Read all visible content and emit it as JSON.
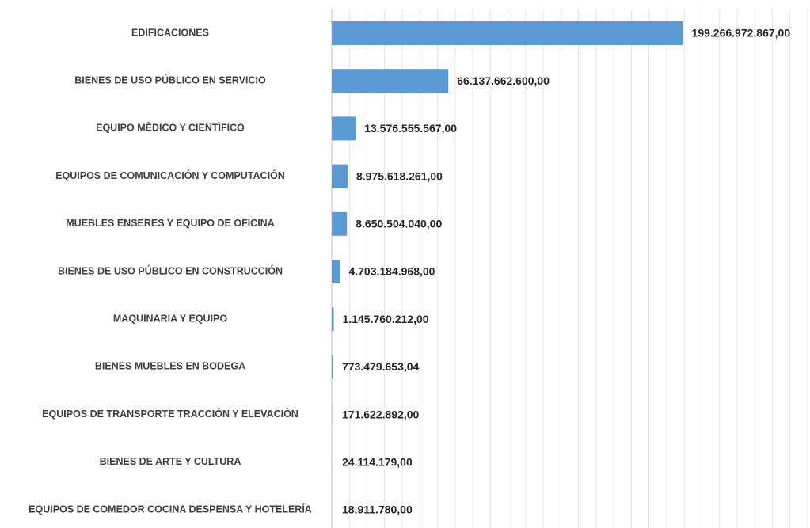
{
  "chart_data": {
    "type": "barh",
    "categories": [
      "EDIFICACIONES",
      "BIENES DE USO PÚBLICO EN SERVICIO",
      "EQUIPO MÈDICO Y CIENTÌFICO",
      "EQUIPOS DE COMUNICACIÓN Y COMPUTACIÓN",
      "MUEBLES  ENSERES Y EQUIPO DE OFICINA",
      "BIENES DE USO PÚBLICO  EN CONSTRUCCIÓN",
      "MAQUINARIA Y EQUIPO",
      "BIENES MUEBLES EN BODEGA",
      "EQUIPOS DE TRANSPORTE  TRACCIÓN Y ELEVACIÓN",
      "BIENES DE ARTE Y CULTURA",
      "EQUIPOS DE COMEDOR  COCINA  DESPENSA Y HOTELERÍA"
    ],
    "values": [
      199266972867,
      66137662600,
      13576555567,
      8975618261,
      8650504040,
      4703184968,
      1145760212,
      773479653.04,
      171622892,
      24114179,
      18911780
    ],
    "value_labels": [
      "199.266.972.867,00",
      "66.137.662.600,00",
      "13.576.555.567,00",
      "8.975.618.261,00",
      "8.650.504.040,00",
      "4.703.184.968,00",
      "1.145.760.212,00",
      "773.479.653,04",
      "171.622.892,00",
      "24.114.179,00",
      "18.911.780,00"
    ],
    "color": "#5b9bd5",
    "xlim": [
      0,
      270000000000
    ],
    "xticks": [
      0,
      10000000000,
      20000000000,
      30000000000,
      40000000000,
      50000000000,
      60000000000,
      70000000000,
      80000000000,
      90000000000,
      100000000000,
      110000000000,
      120000000000,
      130000000000,
      140000000000,
      150000000000,
      160000000000,
      170000000000,
      180000000000,
      190000000000,
      200000000000,
      210000000000,
      220000000000,
      230000000000,
      240000000000,
      250000000000,
      260000000000,
      270000000000
    ],
    "grid": true
  }
}
